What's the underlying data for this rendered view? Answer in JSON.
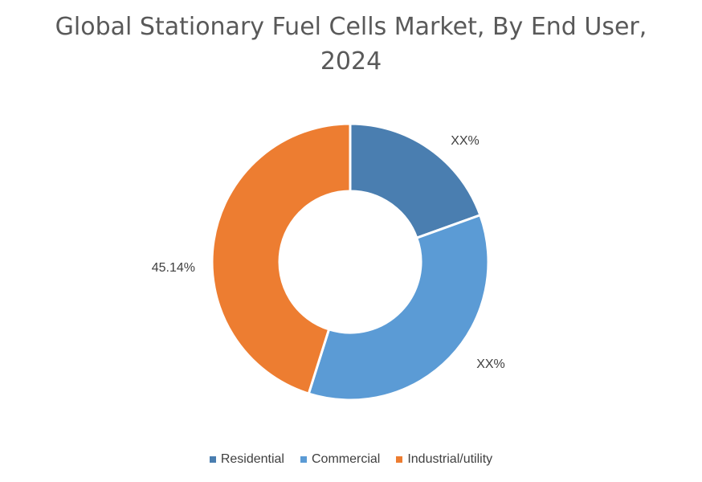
{
  "chart_data": {
    "type": "pie",
    "title": "Global Stationary Fuel Cells Market, By End User, 2024",
    "title_lines": [
      "Global Stationary Fuel Cells Market, By End User,",
      "2024"
    ],
    "donut": true,
    "categories": [
      "Residential",
      "Commercial",
      "Industrial/utility"
    ],
    "values": [
      19.5,
      35.36,
      45.14
    ],
    "data_labels": [
      "XX%",
      "XX%",
      "45.14%"
    ],
    "colors": [
      "#4a7eb0",
      "#5b9bd5",
      "#ed7d31"
    ],
    "legend_position": "bottom"
  }
}
